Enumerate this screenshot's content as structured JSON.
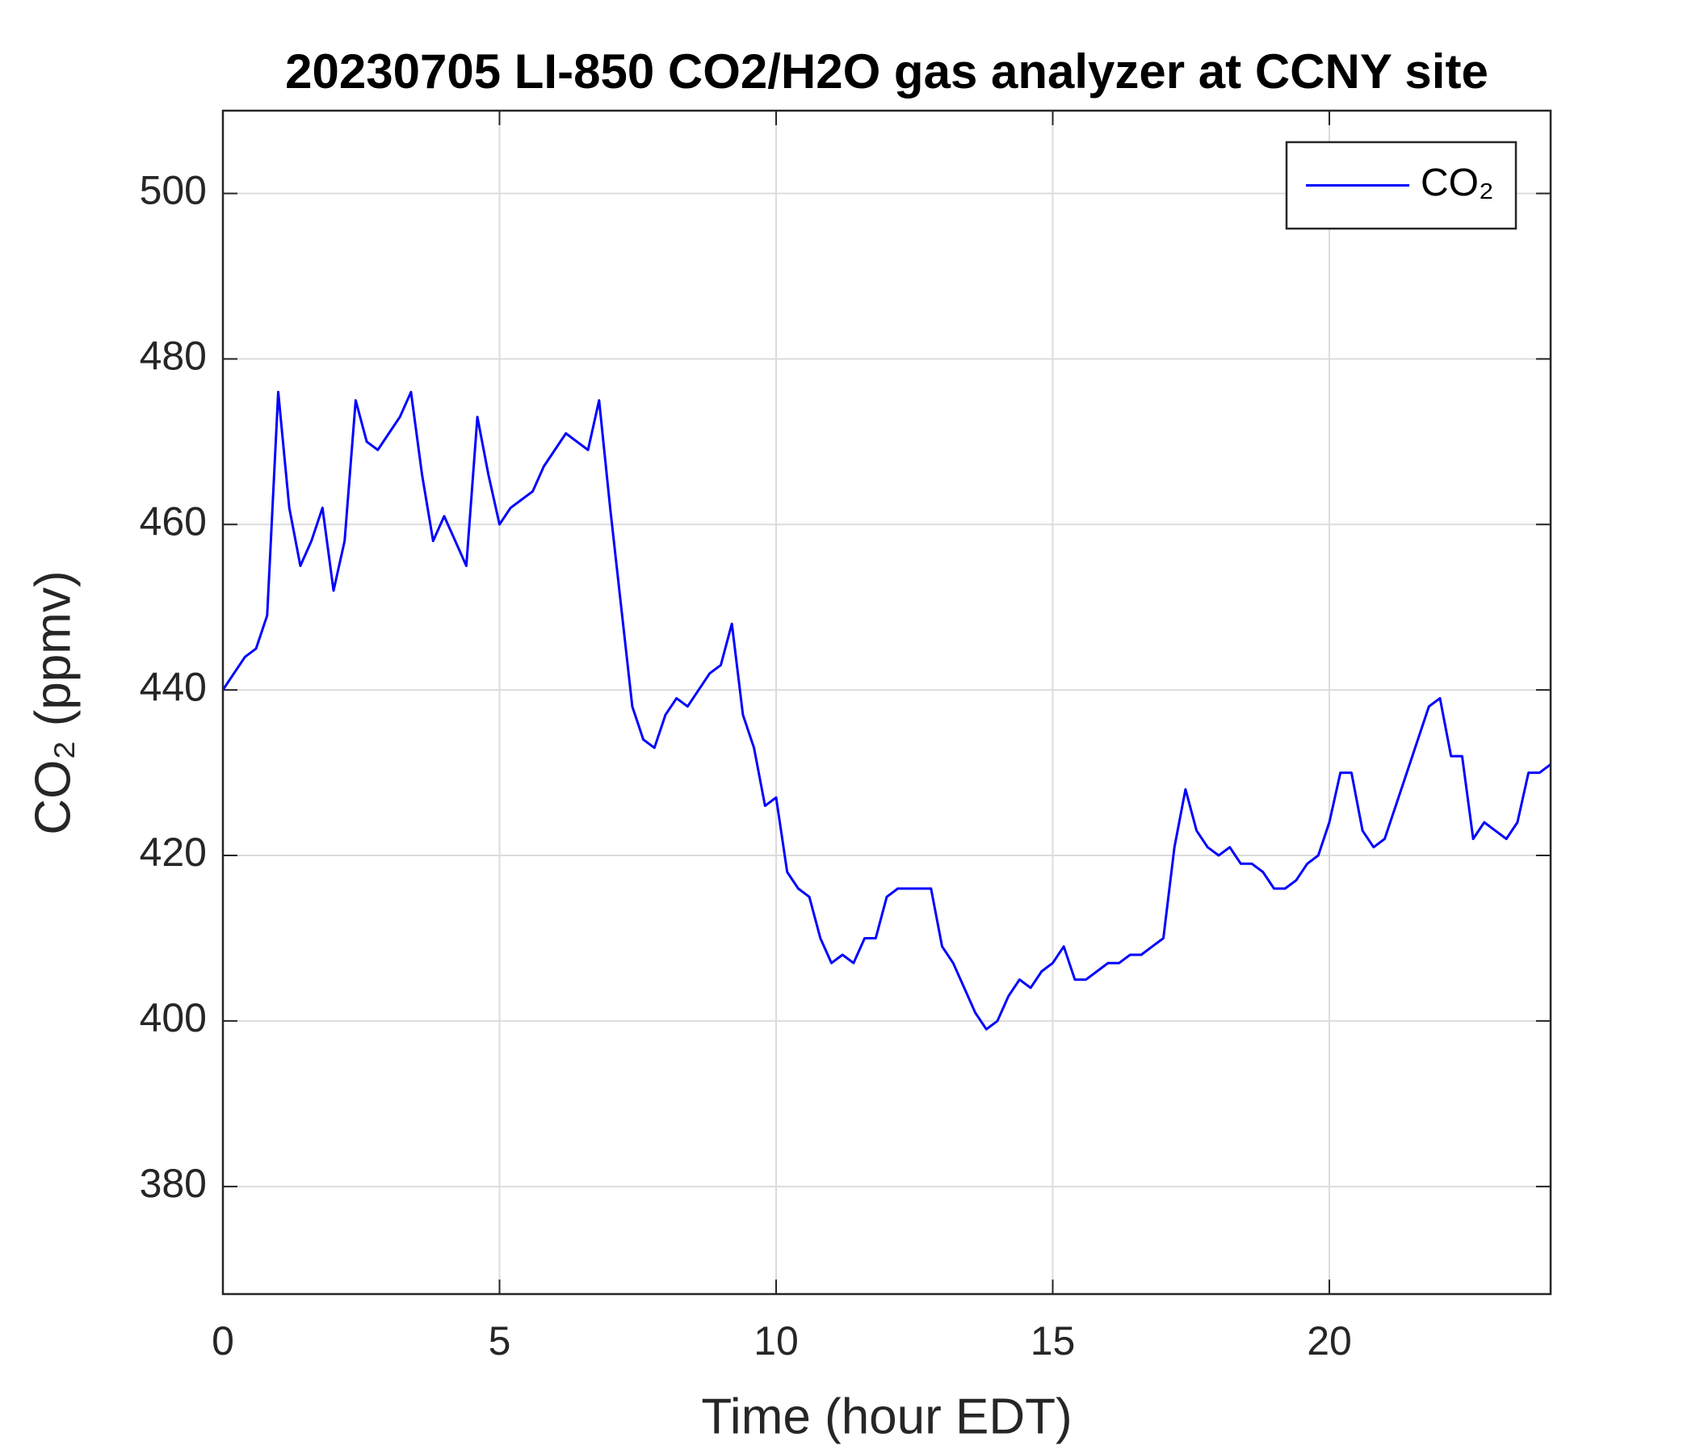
{
  "chart_data": {
    "type": "line",
    "title": "20230705 LI-850 CO2/H2O gas analyzer at CCNY site",
    "xlabel": "Time (hour EDT)",
    "ylabel": "CO₂ (ppmv)",
    "xlim": [
      0,
      24
    ],
    "ylim": [
      367,
      510
    ],
    "xticks": [
      0,
      5,
      10,
      15,
      20
    ],
    "yticks": [
      380,
      400,
      420,
      440,
      460,
      480,
      500
    ],
    "grid": true,
    "legend": "upper right",
    "x": [
      0,
      0.2,
      0.4,
      0.6,
      0.8,
      1,
      1.2,
      1.4,
      1.6,
      1.8,
      2,
      2.2,
      2.4,
      2.6,
      2.8,
      3,
      3.2,
      3.4,
      3.6,
      3.8,
      4,
      4.2,
      4.4,
      4.6,
      4.8,
      5,
      5.2,
      5.4,
      5.6,
      5.8,
      6,
      6.2,
      6.4,
      6.6,
      6.8,
      7,
      7.2,
      7.4,
      7.6,
      7.8,
      8,
      8.2,
      8.4,
      8.6,
      8.8,
      9,
      9.2,
      9.4,
      9.6,
      9.8,
      10,
      10.2,
      10.4,
      10.6,
      10.8,
      11,
      11.2,
      11.4,
      11.6,
      11.8,
      12,
      12.2,
      12.4,
      12.6,
      12.8,
      13,
      13.2,
      13.4,
      13.6,
      13.8,
      14,
      14.2,
      14.4,
      14.6,
      14.8,
      15,
      15.2,
      15.4,
      15.6,
      15.8,
      16,
      16.2,
      16.4,
      16.6,
      16.8,
      17,
      17.2,
      17.4,
      17.6,
      17.8,
      18,
      18.2,
      18.4,
      18.6,
      18.8,
      19,
      19.2,
      19.4,
      19.6,
      19.8,
      20,
      20.2,
      20.4,
      20.6,
      20.8,
      21,
      21.2,
      21.4,
      21.6,
      21.8,
      22,
      22.2,
      22.4,
      22.6,
      22.8,
      23,
      23.2,
      23.4,
      23.6,
      23.8,
      24
    ],
    "series": [
      {
        "name": "CO₂",
        "color": "#0000ff",
        "values": [
          440,
          442,
          444,
          445,
          449,
          476,
          462,
          455,
          458,
          462,
          452,
          458,
          475,
          470,
          469,
          471,
          473,
          476,
          466,
          458,
          461,
          458,
          455,
          473,
          466,
          460,
          462,
          463,
          464,
          467,
          469,
          471,
          470,
          469,
          475,
          462,
          450,
          438,
          434,
          433,
          437,
          439,
          438,
          440,
          442,
          443,
          448,
          437,
          433,
          426,
          427,
          418,
          416,
          415,
          410,
          407,
          408,
          407,
          410,
          410,
          415,
          416,
          416,
          416,
          416,
          409,
          407,
          404,
          401,
          399,
          400,
          403,
          405,
          404,
          406,
          407,
          409,
          405,
          405,
          406,
          407,
          407,
          408,
          408,
          409,
          410,
          421,
          428,
          423,
          421,
          420,
          421,
          419,
          419,
          418,
          416,
          416,
          417,
          419,
          420,
          424,
          430,
          430,
          423,
          421,
          422,
          426,
          430,
          434,
          438,
          439,
          432,
          432,
          422,
          424,
          423,
          422,
          424,
          430,
          430,
          431
        ]
      }
    ]
  }
}
